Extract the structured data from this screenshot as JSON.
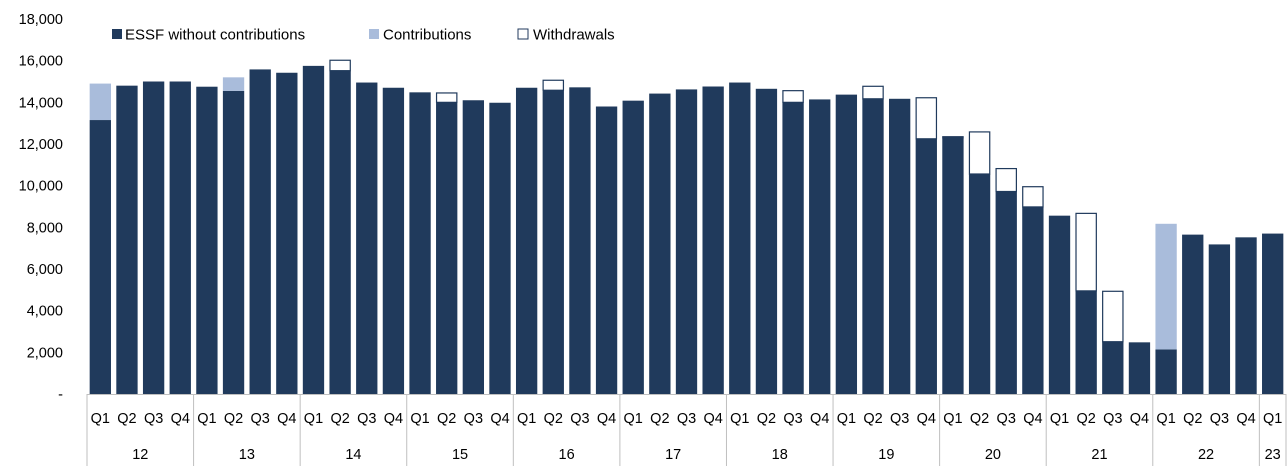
{
  "chart_data": {
    "type": "bar",
    "stacked": true,
    "title": "",
    "xlabel": "",
    "ylabel": "",
    "ylim": [
      0,
      18000
    ],
    "y_ticks": [
      0,
      2000,
      4000,
      6000,
      8000,
      10000,
      12000,
      14000,
      16000,
      18000
    ],
    "y_tick_labels": [
      "-",
      "2,000",
      "4,000",
      "6,000",
      "8,000",
      "10,000",
      "12,000",
      "14,000",
      "16,000",
      "18,000"
    ],
    "grid": false,
    "legend_position": "top-left",
    "categories": [
      "Q1",
      "Q2",
      "Q3",
      "Q4",
      "Q1",
      "Q2",
      "Q3",
      "Q4",
      "Q1",
      "Q2",
      "Q3",
      "Q4",
      "Q1",
      "Q2",
      "Q3",
      "Q4",
      "Q1",
      "Q2",
      "Q3",
      "Q4",
      "Q1",
      "Q2",
      "Q3",
      "Q4",
      "Q1",
      "Q2",
      "Q3",
      "Q4",
      "Q1",
      "Q2",
      "Q3",
      "Q4",
      "Q1",
      "Q2",
      "Q3",
      "Q4",
      "Q1",
      "Q2",
      "Q3",
      "Q4",
      "Q1",
      "Q2",
      "Q3",
      "Q4",
      "Q1"
    ],
    "year_groups": [
      {
        "label": "12",
        "count": 4
      },
      {
        "label": "13",
        "count": 4
      },
      {
        "label": "14",
        "count": 4
      },
      {
        "label": "15",
        "count": 4
      },
      {
        "label": "16",
        "count": 4
      },
      {
        "label": "17",
        "count": 4
      },
      {
        "label": "18",
        "count": 4
      },
      {
        "label": "19",
        "count": 4
      },
      {
        "label": "20",
        "count": 4
      },
      {
        "label": "21",
        "count": 4
      },
      {
        "label": "22",
        "count": 4
      },
      {
        "label": "23",
        "count": 1
      }
    ],
    "series": [
      {
        "name": "ESSF without contributions",
        "color": "#203A5C",
        "style": "solid",
        "values": [
          13150,
          14800,
          15000,
          15000,
          14750,
          14550,
          15580,
          15420,
          15750,
          15520,
          14950,
          14700,
          14480,
          14000,
          14100,
          13980,
          14700,
          14580,
          14720,
          13800,
          14080,
          14420,
          14620,
          14760,
          14950,
          14650,
          14000,
          14140,
          14370,
          14170,
          14170,
          12250,
          12300,
          10560,
          9720,
          8980,
          8560,
          4950,
          2510,
          2480,
          2140,
          7650,
          7180,
          7520,
          7700
        ]
      },
      {
        "name": "Contributions",
        "color": "#A9BCDB",
        "style": "solid",
        "values": [
          1750,
          0,
          0,
          0,
          0,
          650,
          0,
          0,
          0,
          0,
          0,
          0,
          0,
          0,
          0,
          0,
          0,
          0,
          0,
          0,
          0,
          0,
          0,
          0,
          0,
          0,
          0,
          0,
          0,
          0,
          0,
          0,
          0,
          0,
          0,
          0,
          0,
          0,
          0,
          0,
          6030,
          0,
          0,
          0,
          0
        ]
      },
      {
        "name": "Withdrawals",
        "color": "#FFFFFF",
        "style": "outline",
        "values": [
          0,
          0,
          0,
          0,
          0,
          0,
          0,
          0,
          0,
          500,
          0,
          0,
          0,
          450,
          0,
          0,
          0,
          480,
          0,
          0,
          0,
          0,
          0,
          0,
          0,
          0,
          560,
          0,
          0,
          600,
          0,
          1970,
          50,
          2020,
          1100,
          970,
          0,
          3720,
          2420,
          0,
          0,
          0,
          0,
          0,
          0
        ]
      }
    ]
  }
}
